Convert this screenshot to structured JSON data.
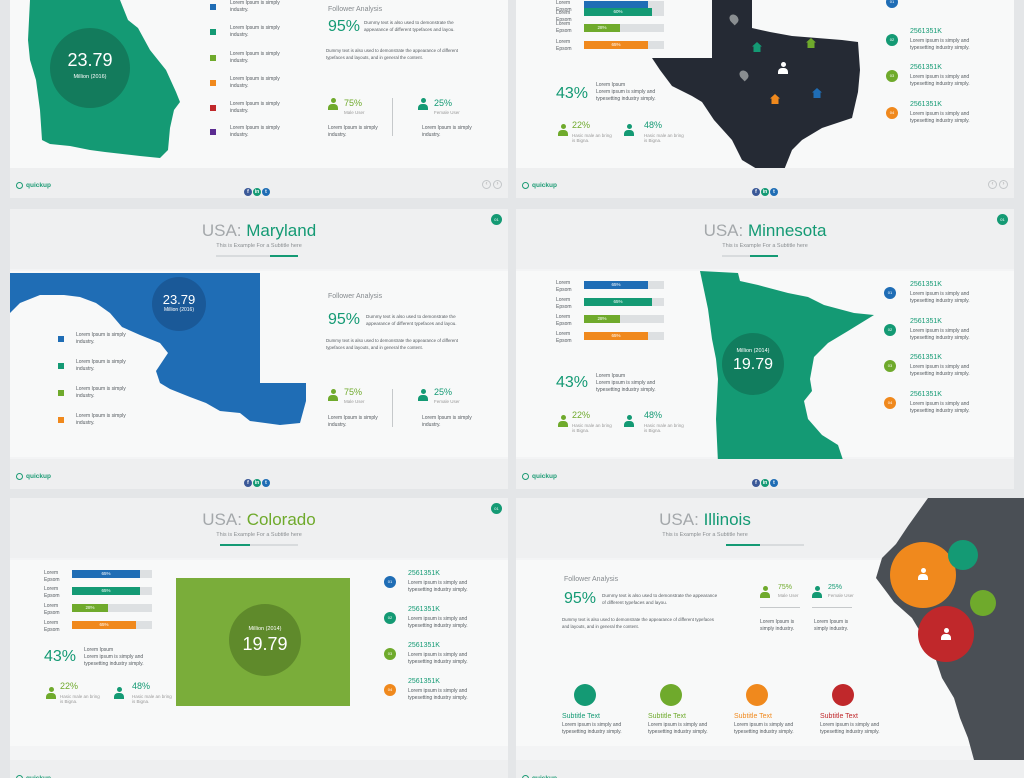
{
  "common": {
    "logo": "quickup",
    "lorem": "Lorem Ipsum is simply industry.",
    "lorem_epsom": "Lorem Epsom",
    "lorem_short": "Lorem Ipsum",
    "lorem_desc": "Lorem ipsum is simply and typesetting industry simply.",
    "subtitle": "This is Example For a Subtitle here",
    "follower_title": "Follower Analysis",
    "dummy_text_1": "Dummy text is also used to demonstrate the appearance of different typefaces and layou.",
    "dummy_text_2": "Dummy text is also used to demonstrate the appearance of different typefaces and layouts, and in general the content.",
    "male_label": "Male User",
    "female_label": "Female User",
    "hasic_text": "Hasic male an bring is Bigna.",
    "stat_id": "2561351K",
    "social": [
      "f",
      "in",
      "t"
    ],
    "nav": [
      "‹",
      "›"
    ],
    "badge": "01"
  },
  "slides": [
    {
      "id": "georgia",
      "stat_value": "23.79",
      "stat_unit": "Million (2016)",
      "followers_pct": "95%",
      "male_pct": "75%",
      "female_pct": "25%",
      "legend_colors": [
        "#1f6db5",
        "#149a74",
        "#6faa2c",
        "#f0891d",
        "#c0282b",
        "#5b2c91"
      ]
    },
    {
      "id": "texas",
      "bars": [
        {
          "value": "",
          "pct": 1.0
        },
        {
          "value": "60%",
          "pct": 0.85
        },
        {
          "value": "28%",
          "pct": 0.45
        },
        {
          "value": "65%",
          "pct": 0.8
        }
      ],
      "big_pct": "43%",
      "pct_a": "22%",
      "pct_b": "48%",
      "stats": [
        {
          "num": "01",
          "color": "#1f6db5",
          "value": "2561351K"
        },
        {
          "num": "02",
          "color": "#149a74",
          "value": "2561351K"
        },
        {
          "num": "03",
          "color": "#6faa2c",
          "value": "2561351K"
        },
        {
          "num": "04",
          "color": "#f0891d",
          "value": "2561351K"
        }
      ]
    },
    {
      "id": "maryland",
      "prefix": "USA:",
      "name": "Maryland",
      "stat_value": "23.79",
      "stat_unit": "Million (2016)",
      "followers_pct": "95%",
      "male_pct": "75%",
      "female_pct": "25%",
      "legend_colors": [
        "#1f6db5",
        "#149a74",
        "#6faa2c",
        "#f0891d"
      ]
    },
    {
      "id": "minnesota",
      "prefix": "USA:",
      "name": "Minnesota",
      "stat_value": "19.79",
      "stat_unit": "Million (2014)",
      "bars": [
        {
          "value": "65%",
          "pct": 0.8,
          "color": "#1f6db5"
        },
        {
          "value": "65%",
          "pct": 0.85,
          "color": "#149a74"
        },
        {
          "value": "28%",
          "pct": 0.45,
          "color": "#6faa2c"
        },
        {
          "value": "65%",
          "pct": 0.8,
          "color": "#f0891d"
        }
      ],
      "big_pct": "43%",
      "pct_a": "22%",
      "pct_b": "48%",
      "stats": [
        {
          "num": "01",
          "color": "#1f6db5",
          "value": "2561351K"
        },
        {
          "num": "02",
          "color": "#149a74",
          "value": "2561351K"
        },
        {
          "num": "03",
          "color": "#6faa2c",
          "value": "2561351K"
        },
        {
          "num": "04",
          "color": "#f0891d",
          "value": "2561351K"
        }
      ]
    },
    {
      "id": "colorado",
      "prefix": "USA:",
      "name": "Colorado",
      "stat_value": "19.79",
      "stat_unit": "Million (2014)",
      "bars": [
        {
          "value": "65%",
          "pct": 0.85,
          "color": "#1f6db5"
        },
        {
          "value": "65%",
          "pct": 0.85,
          "color": "#149a74"
        },
        {
          "value": "28%",
          "pct": 0.45,
          "color": "#6faa2c"
        },
        {
          "value": "65%",
          "pct": 0.8,
          "color": "#f0891d"
        }
      ],
      "big_pct": "43%",
      "pct_a": "22%",
      "pct_b": "48%",
      "stats": [
        {
          "num": "01",
          "color": "#1f6db5",
          "value": "2561351K"
        },
        {
          "num": "02",
          "color": "#149a74",
          "value": "2561351K"
        },
        {
          "num": "03",
          "color": "#6faa2c",
          "value": "2561351K"
        },
        {
          "num": "04",
          "color": "#f0891d",
          "value": "2561351K"
        }
      ]
    },
    {
      "id": "illinois",
      "prefix": "USA:",
      "name": "Illinois",
      "followers_pct": "95%",
      "male_pct": "75%",
      "female_pct": "25%",
      "subtitle_text": "Subtitle Text",
      "features": [
        {
          "color": "#149a74",
          "icon": "cloud-upload-icon"
        },
        {
          "color": "#6faa2c",
          "icon": "pie-chart-icon"
        },
        {
          "color": "#f0891d",
          "icon": "cart-icon"
        },
        {
          "color": "#c0282b",
          "icon": "tree-icon"
        }
      ]
    }
  ]
}
